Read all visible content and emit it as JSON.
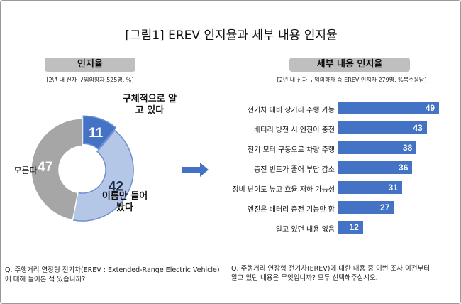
{
  "title": "[그림1] EREV 인지율과 세부 내용 인지율",
  "left": {
    "header": "인지율",
    "note": "[2년 내 신차 구입의향자 525명, %]",
    "question": [
      "Q. 주행거리 연장형 전기차(EREV : Extended-Range Electric Vehicle)",
      "에 대해 들어본 적 있습니까?"
    ]
  },
  "right": {
    "header": "세부 내용 인지율",
    "note": "[2년 내 신차 구입의향자 중 EREV 인지자 279명, %복수응답]",
    "question": [
      "Q. 주행거리 연장형 전기차(EREV)에 대한 내용 중 이번 조사 이전부터",
      "알고 있던 내용은 무엇입니까? 모두 선택해주십시오."
    ]
  },
  "arrow_icon": "right-arrow",
  "chart_data": [
    {
      "type": "pie",
      "donut": true,
      "categories": [
        "구체적으로 알고 있다",
        "이름만 들어봤다",
        "모른다"
      ],
      "values": [
        11,
        42,
        47
      ],
      "colors": [
        "#4472c4",
        "#b4c7e7",
        "#a6a6a6"
      ]
    },
    {
      "type": "bar",
      "orientation": "horizontal",
      "categories": [
        "전기차 대비 장거리 주행 가능",
        "배터리 방전 시 엔진이 충전",
        "전기 모터 구동으로 차량 주행",
        "충전 빈도가 줄어 부담 감소",
        "정비 난이도 높고 효율 저하 가능성",
        "엔진은 배터리 충전 기능만 함",
        "알고 있던 내용 없음"
      ],
      "values": [
        49,
        43,
        38,
        36,
        31,
        27,
        12
      ],
      "color": "#4472c4"
    }
  ]
}
